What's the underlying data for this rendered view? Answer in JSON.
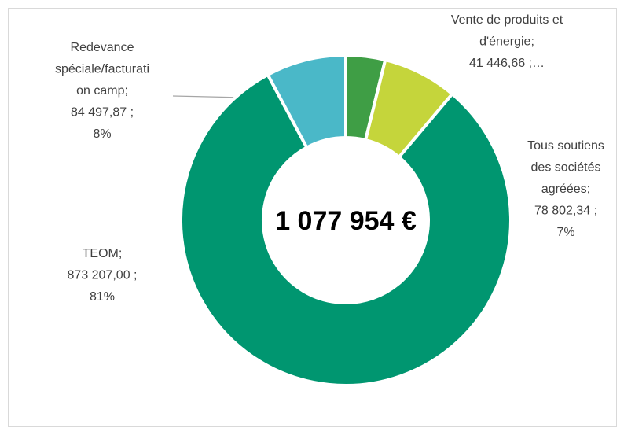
{
  "chart_data": {
    "type": "donut",
    "categories": [
      "Vente de produits et d'énergie",
      "Tous soutiens des sociétés agréées",
      "TEOM",
      "Redevance spéciale/facturation camp"
    ],
    "values": [
      41446.66,
      78802.34,
      873207.0,
      84497.87
    ],
    "value_labels": [
      "Vente de produits et\nd'énergie;\n41 446,66  ;…",
      "Tous soutiens\ndes sociétés\nagréées;\n78 802,34  ;\n7%",
      "TEOM;\n873 207,00  ;\n81%",
      "Redevance\nspéciale/facturati\non camp;\n84 497,87  ;\n8%"
    ],
    "colors": [
      "#3f9e45",
      "#c5d53b",
      "#009670",
      "#4ab8c8"
    ],
    "center_label": "1 077 954 €"
  }
}
